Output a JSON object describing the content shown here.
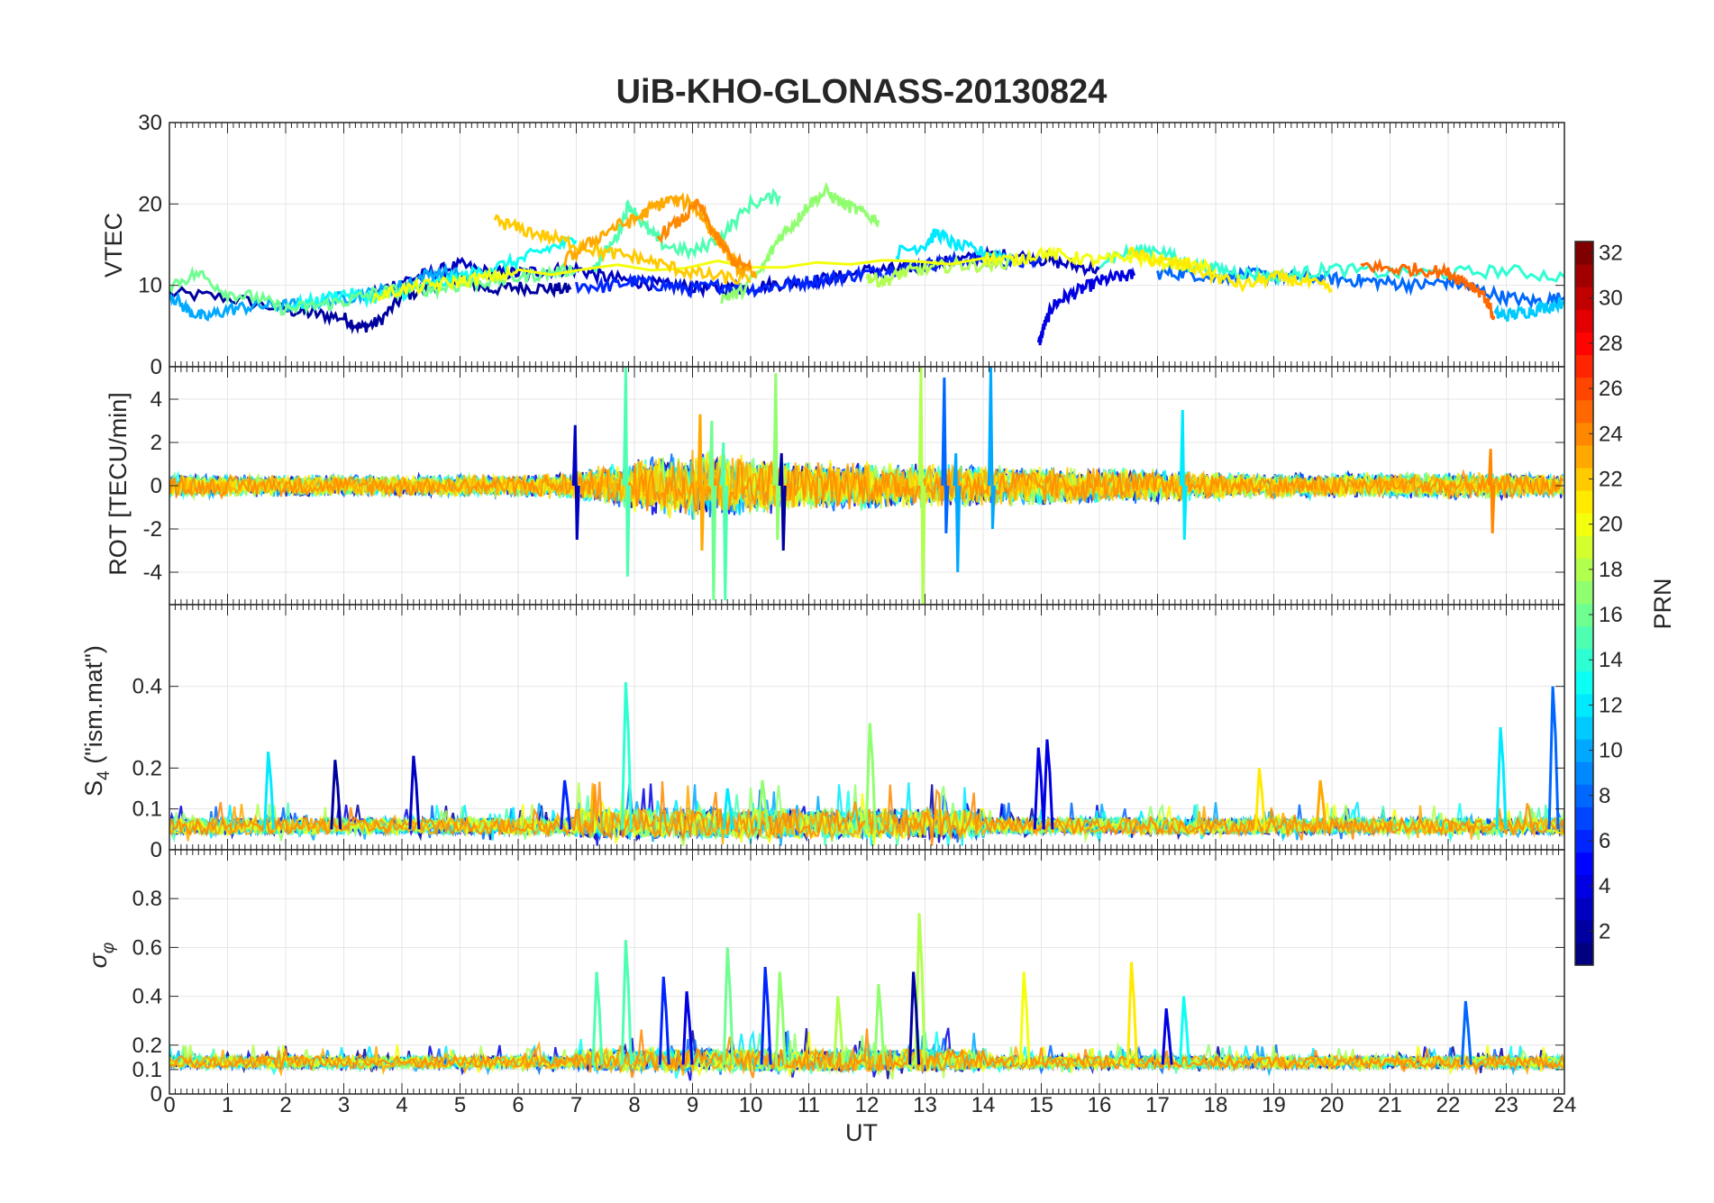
{
  "chart_data": {
    "title": "UiB-KHO-GLONASS-20130824",
    "type": "line",
    "xlabel": "UT",
    "xlim": [
      0,
      24
    ],
    "xticks": [
      "0",
      "1",
      "2",
      "3",
      "4",
      "5",
      "6",
      "7",
      "8",
      "9",
      "10",
      "11",
      "12",
      "13",
      "14",
      "15",
      "16",
      "17",
      "18",
      "19",
      "20",
      "21",
      "22",
      "23",
      "24"
    ],
    "grid": true,
    "panels": [
      {
        "id": "vtec",
        "ylabel": "VTEC",
        "ylim": [
          0,
          30
        ],
        "yticks": [
          0,
          10,
          20,
          30
        ],
        "ytick_labels": [
          "0",
          "10",
          "20",
          "30"
        ],
        "series": [
          {
            "prn": 2,
            "x": [
              0,
              1,
              2,
              2.5,
              3,
              3.3,
              3.6,
              4,
              4.5,
              5,
              5.5,
              6,
              6.5,
              6.9
            ],
            "y": [
              9,
              8.5,
              7,
              6.5,
              6,
              4.8,
              5.5,
              8.5,
              10,
              11,
              9.5,
              9.8,
              9.6,
              9.5
            ]
          },
          {
            "prn": 3,
            "x": [
              3.5,
              4,
              4.5,
              5,
              5.5,
              6,
              6.5,
              7,
              7.5,
              8,
              8.5,
              9,
              9.5,
              10,
              10.5,
              11,
              11.5,
              12,
              12.5,
              13,
              13.5,
              14,
              14.5,
              15,
              15.5,
              16
            ],
            "y": [
              9,
              10.5,
              11.5,
              12.5,
              11.5,
              11.5,
              11.8,
              12,
              11,
              10.5,
              10,
              9.8,
              9.5,
              9.8,
              10.2,
              10.5,
              11,
              11.8,
              12,
              12.5,
              13,
              13.5,
              13.8,
              13.2,
              12.5,
              12
            ]
          },
          {
            "prn": 4,
            "x": [
              14.95,
              15.05,
              15.2,
              15.4,
              15.7,
              16,
              16.3,
              16.6
            ],
            "y": [
              2.5,
              5,
              7.5,
              8.5,
              9.5,
              10.5,
              11,
              11.2
            ]
          },
          {
            "prn": 6,
            "x": [
              7,
              7.5,
              8,
              8.5,
              9,
              9.5,
              10,
              10.5,
              11,
              11.5,
              12,
              12.5,
              13,
              13.5,
              14,
              14.5,
              15
            ],
            "y": [
              10,
              9.8,
              10.5,
              10,
              9.5,
              10,
              9.5,
              10,
              10.5,
              11,
              11.5,
              12,
              12.5,
              13,
              13.2,
              12.8,
              13
            ]
          },
          {
            "prn": 8,
            "x": [
              17,
              17.5,
              18,
              18.5,
              19,
              19.5,
              20,
              20.5,
              21,
              21.5,
              22,
              22.5,
              23,
              23.5,
              24
            ],
            "y": [
              11.5,
              11.5,
              11,
              11.3,
              11.2,
              11,
              10.8,
              10.6,
              10.3,
              10,
              10.5,
              9.5,
              8.5,
              8,
              8.5
            ]
          },
          {
            "prn": 10,
            "x": [
              0,
              0.3,
              0.6,
              1,
              1.5,
              2,
              2.5,
              3,
              3.5,
              4,
              4.5,
              5
            ],
            "y": [
              9,
              7,
              6,
              7,
              7.5,
              7.5,
              7.8,
              8.5,
              9,
              10,
              11.5,
              11.5
            ]
          },
          {
            "prn": 11,
            "x": [
              22.8,
              23,
              23.3,
              23.6,
              24
            ],
            "y": [
              6.5,
              6.3,
              6.7,
              7.2,
              8
            ]
          },
          {
            "prn": 12,
            "x": [
              12.5,
              13,
              13.2,
              13.5,
              14,
              14.5
            ],
            "y": [
              14,
              15,
              16.5,
              15,
              14,
              13.5
            ]
          },
          {
            "prn": 13,
            "x": [
              2,
              2.5,
              3,
              3.5,
              4,
              4.5,
              5,
              5.5,
              6,
              6.5,
              7
            ],
            "y": [
              7.5,
              8,
              9,
              8.5,
              9,
              10,
              11,
              12,
              13,
              14.5,
              15.5
            ]
          },
          {
            "prn": 14,
            "x": [
              16,
              16.5,
              17,
              17.5,
              18,
              18.5,
              19,
              19.5,
              20,
              21,
              22,
              23,
              24
            ],
            "y": [
              13,
              14,
              14.5,
              12.5,
              12,
              11.5,
              11,
              11.5,
              12,
              11.5,
              11.5,
              11.8,
              11
            ]
          },
          {
            "prn": 15,
            "x": [
              7.3,
              7.7,
              7.9,
              8.2,
              8.5,
              9,
              9.5,
              10,
              10.5
            ],
            "y": [
              12,
              16,
              20,
              17,
              15,
              14,
              16,
              20,
              21
            ]
          },
          {
            "prn": 16,
            "x": [
              0,
              0.5,
              1,
              1.5,
              2,
              2.5,
              3,
              3.5,
              4,
              4.5,
              5,
              5.5,
              6,
              6.5,
              7
            ],
            "y": [
              10,
              11.5,
              9,
              8.5,
              7,
              7.5,
              8,
              9,
              9.5,
              9.5,
              10,
              10.5,
              11,
              11.5,
              12
            ]
          },
          {
            "prn": 17,
            "x": [
              9.5,
              9.8,
              10.2,
              10.5,
              10.8,
              11,
              11.3,
              11.6,
              11.9,
              12.2
            ],
            "y": [
              8.5,
              9,
              12,
              16,
              18,
              20,
              21.5,
              20,
              19,
              18
            ]
          },
          {
            "prn": 18,
            "x": [
              12,
              12.3,
              12.6,
              13,
              13.5,
              14,
              14.5
            ],
            "y": [
              11,
              10.5,
              11.5,
              12,
              12.5,
              12.5,
              13
            ]
          },
          {
            "prn": 20,
            "x": [
              3.5,
              4,
              4.5,
              5,
              5.5,
              6,
              14,
              14.5,
              15,
              15.5,
              16,
              16.5,
              17,
              17.5,
              18
            ],
            "y": [
              8.5,
              9.5,
              10,
              10.5,
              11,
              11.5,
              13.5,
              13,
              14,
              13.5,
              13,
              13.5,
              13,
              12.5,
              12
            ]
          },
          {
            "prn": 21,
            "x": [
              16.5,
              17,
              17.5,
              18,
              18.5,
              19,
              19.5,
              20
            ],
            "y": [
              14,
              13,
              12.5,
              11,
              10,
              11,
              10.5,
              9.5
            ]
          },
          {
            "prn": 22,
            "x": [
              5.6,
              6,
              6.5,
              7,
              7.5,
              8,
              8.5,
              9,
              9.5,
              10
            ],
            "y": [
              18,
              17,
              16,
              15,
              14,
              13.5,
              12.5,
              11.5,
              11,
              10.5
            ]
          },
          {
            "prn": 23,
            "x": [
              6.8,
              7.2,
              7.6,
              8,
              8.3,
              8.6,
              9,
              9.2,
              9.4,
              9.6,
              9.8,
              10.1
            ],
            "y": [
              13,
              15,
              17,
              18,
              19.5,
              20.5,
              20,
              18,
              16,
              14,
              12,
              11
            ]
          },
          {
            "prn": 24,
            "x": [
              8.4,
              8.8,
              9.1,
              9.4,
              9.7,
              10
            ],
            "y": [
              16,
              18,
              20,
              16,
              13,
              12
            ]
          },
          {
            "prn": 25,
            "x": [
              20.5,
              21,
              21.5,
              22,
              22.3,
              22.6,
              22.8
            ],
            "y": [
              12.5,
              12,
              12,
              11.5,
              10.5,
              9,
              6
            ]
          }
        ]
      },
      {
        "id": "rot",
        "ylabel": "ROT [TECU/min]",
        "ylim": [
          -5.5,
          5.5
        ],
        "yticks": [
          -4,
          -2,
          0,
          2,
          4
        ],
        "ytick_labels": [
          "-4",
          "-2",
          "0",
          "2",
          "4"
        ],
        "envelope": {
          "x": [
            0,
            2,
            4,
            6,
            7,
            8,
            9,
            10,
            11,
            12,
            13,
            14,
            15,
            16,
            17,
            18,
            20,
            22,
            24
          ],
          "amp": [
            0.5,
            0.45,
            0.45,
            0.45,
            0.6,
            1.1,
            1.4,
            1.2,
            1.0,
            1.0,
            0.9,
            0.9,
            0.8,
            0.7,
            0.7,
            0.55,
            0.5,
            0.55,
            0.5
          ]
        },
        "spikes": [
          {
            "x": 7.82,
            "lo": -4.2,
            "hi": 5.5,
            "prn": 15
          },
          {
            "x": 9.3,
            "lo": -5.3,
            "hi": 3.0,
            "prn": 16
          },
          {
            "x": 9.5,
            "lo": -5.3,
            "hi": 2.0,
            "prn": 15
          },
          {
            "x": 10.4,
            "lo": -2.5,
            "hi": 5.2,
            "prn": 17
          },
          {
            "x": 10.5,
            "lo": -3.0,
            "hi": 1.5,
            "prn": 2
          },
          {
            "x": 12.9,
            "lo": -5.5,
            "hi": 5.5,
            "prn": 18
          },
          {
            "x": 13.3,
            "lo": -2.2,
            "hi": 5.0,
            "prn": 8
          },
          {
            "x": 13.5,
            "lo": -4.0,
            "hi": 1.5,
            "prn": 10
          },
          {
            "x": 14.1,
            "lo": -2.0,
            "hi": 5.5,
            "prn": 10
          },
          {
            "x": 17.4,
            "lo": -2.5,
            "hi": 3.5,
            "prn": 12
          },
          {
            "x": 6.95,
            "lo": -2.5,
            "hi": 2.8,
            "prn": 3
          },
          {
            "x": 9.1,
            "lo": -3.0,
            "hi": 3.3,
            "prn": 23
          },
          {
            "x": 22.7,
            "lo": -2.2,
            "hi": 1.7,
            "prn": 24
          }
        ]
      },
      {
        "id": "s4",
        "ylabel": "S4 (\"ism.mat\")",
        "ylim": [
          0,
          0.6
        ],
        "yticks": [
          0,
          0.1,
          0.2,
          0.4
        ],
        "ytick_labels": [
          "0",
          "0.1",
          "0.2",
          "0.4"
        ],
        "base": 0.05,
        "noise": 0.04,
        "spikes": [
          {
            "x": 1.7,
            "h": 0.24,
            "prn": 12
          },
          {
            "x": 2.85,
            "h": 0.22,
            "prn": 2
          },
          {
            "x": 4.2,
            "h": 0.23,
            "prn": 3
          },
          {
            "x": 6.8,
            "h": 0.17,
            "prn": 6
          },
          {
            "x": 7.85,
            "h": 0.41,
            "prn": 14
          },
          {
            "x": 9.6,
            "h": 0.15,
            "prn": 12
          },
          {
            "x": 10.2,
            "h": 0.17,
            "prn": 17
          },
          {
            "x": 12.05,
            "h": 0.31,
            "prn": 17
          },
          {
            "x": 14.95,
            "h": 0.25,
            "prn": 4
          },
          {
            "x": 15.1,
            "h": 0.27,
            "prn": 4
          },
          {
            "x": 18.75,
            "h": 0.2,
            "prn": 21
          },
          {
            "x": 19.8,
            "h": 0.17,
            "prn": 23
          },
          {
            "x": 22.9,
            "h": 0.3,
            "prn": 12
          },
          {
            "x": 23.8,
            "h": 0.4,
            "prn": 8
          }
        ]
      },
      {
        "id": "sigma",
        "ylabel": "σφ",
        "ylim": [
          0,
          1
        ],
        "yticks": [
          0,
          0.1,
          0.2,
          0.4,
          0.6,
          0.8
        ],
        "ytick_labels": [
          "0",
          "0.1",
          "0.2",
          "0.4",
          "0.6",
          "0.8"
        ],
        "base": 0.12,
        "noise": 0.05,
        "spikes": [
          {
            "x": 7.35,
            "h": 0.5,
            "prn": 15
          },
          {
            "x": 7.85,
            "h": 0.63,
            "prn": 15
          },
          {
            "x": 8.5,
            "h": 0.48,
            "prn": 6
          },
          {
            "x": 8.9,
            "h": 0.42,
            "prn": 4
          },
          {
            "x": 9.6,
            "h": 0.6,
            "prn": 16
          },
          {
            "x": 10.25,
            "h": 0.52,
            "prn": 6
          },
          {
            "x": 10.5,
            "h": 0.5,
            "prn": 17
          },
          {
            "x": 11.5,
            "h": 0.4,
            "prn": 18
          },
          {
            "x": 12.2,
            "h": 0.45,
            "prn": 17
          },
          {
            "x": 12.9,
            "h": 0.74,
            "prn": 18
          },
          {
            "x": 12.8,
            "h": 0.5,
            "prn": 2
          },
          {
            "x": 14.7,
            "h": 0.5,
            "prn": 20
          },
          {
            "x": 16.55,
            "h": 0.54,
            "prn": 21
          },
          {
            "x": 17.15,
            "h": 0.35,
            "prn": 4
          },
          {
            "x": 17.45,
            "h": 0.4,
            "prn": 13
          },
          {
            "x": 22.3,
            "h": 0.38,
            "prn": 8
          }
        ]
      }
    ],
    "colorbar": {
      "label": "PRN",
      "range": [
        1,
        32
      ],
      "colormap": "jet",
      "ticks": [
        "2",
        "4",
        "6",
        "8",
        "10",
        "12",
        "14",
        "16",
        "18",
        "20",
        "22",
        "24",
        "26",
        "28",
        "30",
        "32"
      ]
    }
  }
}
